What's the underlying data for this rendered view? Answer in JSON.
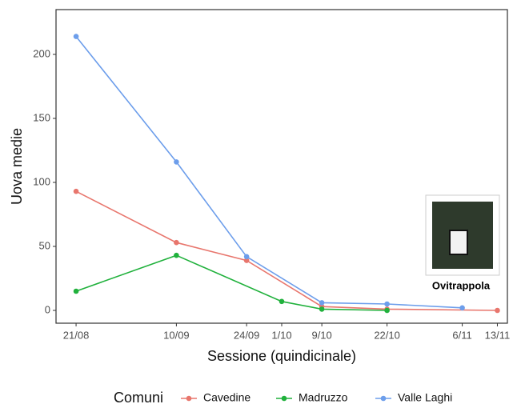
{
  "chart_data": {
    "type": "line",
    "x_label": "Sessione (quindicinale)",
    "y_label": "Uova medie",
    "legend_title": "Comuni",
    "legend_position": "bottom",
    "image_caption": "Ovitrappola",
    "xlim": [
      "17/08",
      "15/11"
    ],
    "xticks": [
      "21/08",
      "10/09",
      "24/09",
      "1/10",
      "9/10",
      "22/10",
      "6/11",
      "13/11"
    ],
    "ylim": [
      -10,
      235
    ],
    "yticks": [
      0,
      50,
      100,
      150,
      200
    ],
    "grid": false,
    "series": [
      {
        "name": "Cavedine",
        "color": "#e8766d",
        "x": [
          "21/08",
          "10/09",
          "24/09",
          "9/10",
          "22/10",
          "13/11"
        ],
        "values": [
          93,
          53,
          39,
          3,
          1,
          0
        ]
      },
      {
        "name": "Madruzzo",
        "color": "#20b13c",
        "x": [
          "21/08",
          "10/09",
          "1/10",
          "9/10",
          "22/10"
        ],
        "values": [
          15,
          43,
          7,
          1,
          0
        ]
      },
      {
        "name": "Valle Laghi",
        "color": "#6d9eeb",
        "x": [
          "21/08",
          "10/09",
          "24/09",
          "9/10",
          "22/10",
          "6/11"
        ],
        "values": [
          214,
          116,
          42,
          6,
          5,
          2
        ]
      }
    ]
  }
}
